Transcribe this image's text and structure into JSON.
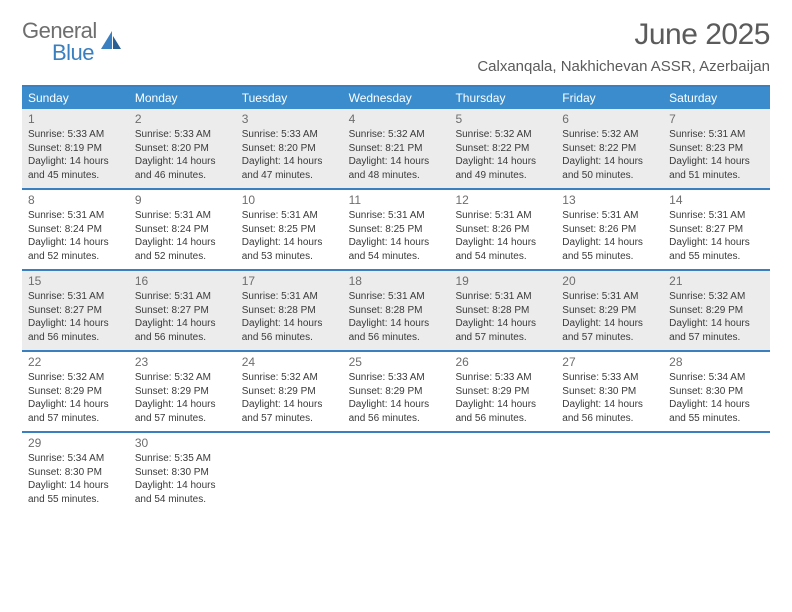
{
  "logo": {
    "word1": "General",
    "word2": "Blue"
  },
  "title": "June 2025",
  "location": "Calxanqala, Nakhichevan ASSR, Azerbaijan",
  "colors": {
    "brand_blue": "#3a8ccc",
    "rule_blue": "#3a7fbf",
    "text_grey": "#5b5b5b",
    "body_text": "#3a3a3a",
    "shaded_bg": "#ececec",
    "page_bg": "#ffffff",
    "white": "#ffffff"
  },
  "typography": {
    "title_fontsize": 30,
    "location_fontsize": 15,
    "dayheader_fontsize": 12,
    "daynum_fontsize": 12,
    "body_fontsize": 10
  },
  "day_headers": [
    "Sunday",
    "Monday",
    "Tuesday",
    "Wednesday",
    "Thursday",
    "Friday",
    "Saturday"
  ],
  "weeks": [
    {
      "shaded": true,
      "days": [
        {
          "n": "1",
          "sunrise": "Sunrise: 5:33 AM",
          "sunset": "Sunset: 8:19 PM",
          "d1": "Daylight: 14 hours",
          "d2": "and 45 minutes."
        },
        {
          "n": "2",
          "sunrise": "Sunrise: 5:33 AM",
          "sunset": "Sunset: 8:20 PM",
          "d1": "Daylight: 14 hours",
          "d2": "and 46 minutes."
        },
        {
          "n": "3",
          "sunrise": "Sunrise: 5:33 AM",
          "sunset": "Sunset: 8:20 PM",
          "d1": "Daylight: 14 hours",
          "d2": "and 47 minutes."
        },
        {
          "n": "4",
          "sunrise": "Sunrise: 5:32 AM",
          "sunset": "Sunset: 8:21 PM",
          "d1": "Daylight: 14 hours",
          "d2": "and 48 minutes."
        },
        {
          "n": "5",
          "sunrise": "Sunrise: 5:32 AM",
          "sunset": "Sunset: 8:22 PM",
          "d1": "Daylight: 14 hours",
          "d2": "and 49 minutes."
        },
        {
          "n": "6",
          "sunrise": "Sunrise: 5:32 AM",
          "sunset": "Sunset: 8:22 PM",
          "d1": "Daylight: 14 hours",
          "d2": "and 50 minutes."
        },
        {
          "n": "7",
          "sunrise": "Sunrise: 5:31 AM",
          "sunset": "Sunset: 8:23 PM",
          "d1": "Daylight: 14 hours",
          "d2": "and 51 minutes."
        }
      ]
    },
    {
      "shaded": false,
      "days": [
        {
          "n": "8",
          "sunrise": "Sunrise: 5:31 AM",
          "sunset": "Sunset: 8:24 PM",
          "d1": "Daylight: 14 hours",
          "d2": "and 52 minutes."
        },
        {
          "n": "9",
          "sunrise": "Sunrise: 5:31 AM",
          "sunset": "Sunset: 8:24 PM",
          "d1": "Daylight: 14 hours",
          "d2": "and 52 minutes."
        },
        {
          "n": "10",
          "sunrise": "Sunrise: 5:31 AM",
          "sunset": "Sunset: 8:25 PM",
          "d1": "Daylight: 14 hours",
          "d2": "and 53 minutes."
        },
        {
          "n": "11",
          "sunrise": "Sunrise: 5:31 AM",
          "sunset": "Sunset: 8:25 PM",
          "d1": "Daylight: 14 hours",
          "d2": "and 54 minutes."
        },
        {
          "n": "12",
          "sunrise": "Sunrise: 5:31 AM",
          "sunset": "Sunset: 8:26 PM",
          "d1": "Daylight: 14 hours",
          "d2": "and 54 minutes."
        },
        {
          "n": "13",
          "sunrise": "Sunrise: 5:31 AM",
          "sunset": "Sunset: 8:26 PM",
          "d1": "Daylight: 14 hours",
          "d2": "and 55 minutes."
        },
        {
          "n": "14",
          "sunrise": "Sunrise: 5:31 AM",
          "sunset": "Sunset: 8:27 PM",
          "d1": "Daylight: 14 hours",
          "d2": "and 55 minutes."
        }
      ]
    },
    {
      "shaded": true,
      "days": [
        {
          "n": "15",
          "sunrise": "Sunrise: 5:31 AM",
          "sunset": "Sunset: 8:27 PM",
          "d1": "Daylight: 14 hours",
          "d2": "and 56 minutes."
        },
        {
          "n": "16",
          "sunrise": "Sunrise: 5:31 AM",
          "sunset": "Sunset: 8:27 PM",
          "d1": "Daylight: 14 hours",
          "d2": "and 56 minutes."
        },
        {
          "n": "17",
          "sunrise": "Sunrise: 5:31 AM",
          "sunset": "Sunset: 8:28 PM",
          "d1": "Daylight: 14 hours",
          "d2": "and 56 minutes."
        },
        {
          "n": "18",
          "sunrise": "Sunrise: 5:31 AM",
          "sunset": "Sunset: 8:28 PM",
          "d1": "Daylight: 14 hours",
          "d2": "and 56 minutes."
        },
        {
          "n": "19",
          "sunrise": "Sunrise: 5:31 AM",
          "sunset": "Sunset: 8:28 PM",
          "d1": "Daylight: 14 hours",
          "d2": "and 57 minutes."
        },
        {
          "n": "20",
          "sunrise": "Sunrise: 5:31 AM",
          "sunset": "Sunset: 8:29 PM",
          "d1": "Daylight: 14 hours",
          "d2": "and 57 minutes."
        },
        {
          "n": "21",
          "sunrise": "Sunrise: 5:32 AM",
          "sunset": "Sunset: 8:29 PM",
          "d1": "Daylight: 14 hours",
          "d2": "and 57 minutes."
        }
      ]
    },
    {
      "shaded": false,
      "days": [
        {
          "n": "22",
          "sunrise": "Sunrise: 5:32 AM",
          "sunset": "Sunset: 8:29 PM",
          "d1": "Daylight: 14 hours",
          "d2": "and 57 minutes."
        },
        {
          "n": "23",
          "sunrise": "Sunrise: 5:32 AM",
          "sunset": "Sunset: 8:29 PM",
          "d1": "Daylight: 14 hours",
          "d2": "and 57 minutes."
        },
        {
          "n": "24",
          "sunrise": "Sunrise: 5:32 AM",
          "sunset": "Sunset: 8:29 PM",
          "d1": "Daylight: 14 hours",
          "d2": "and 57 minutes."
        },
        {
          "n": "25",
          "sunrise": "Sunrise: 5:33 AM",
          "sunset": "Sunset: 8:29 PM",
          "d1": "Daylight: 14 hours",
          "d2": "and 56 minutes."
        },
        {
          "n": "26",
          "sunrise": "Sunrise: 5:33 AM",
          "sunset": "Sunset: 8:29 PM",
          "d1": "Daylight: 14 hours",
          "d2": "and 56 minutes."
        },
        {
          "n": "27",
          "sunrise": "Sunrise: 5:33 AM",
          "sunset": "Sunset: 8:30 PM",
          "d1": "Daylight: 14 hours",
          "d2": "and 56 minutes."
        },
        {
          "n": "28",
          "sunrise": "Sunrise: 5:34 AM",
          "sunset": "Sunset: 8:30 PM",
          "d1": "Daylight: 14 hours",
          "d2": "and 55 minutes."
        }
      ]
    },
    {
      "shaded": false,
      "days": [
        {
          "n": "29",
          "sunrise": "Sunrise: 5:34 AM",
          "sunset": "Sunset: 8:30 PM",
          "d1": "Daylight: 14 hours",
          "d2": "and 55 minutes."
        },
        {
          "n": "30",
          "sunrise": "Sunrise: 5:35 AM",
          "sunset": "Sunset: 8:30 PM",
          "d1": "Daylight: 14 hours",
          "d2": "and 54 minutes."
        },
        {
          "empty": true
        },
        {
          "empty": true
        },
        {
          "empty": true
        },
        {
          "empty": true
        },
        {
          "empty": true
        }
      ]
    }
  ]
}
